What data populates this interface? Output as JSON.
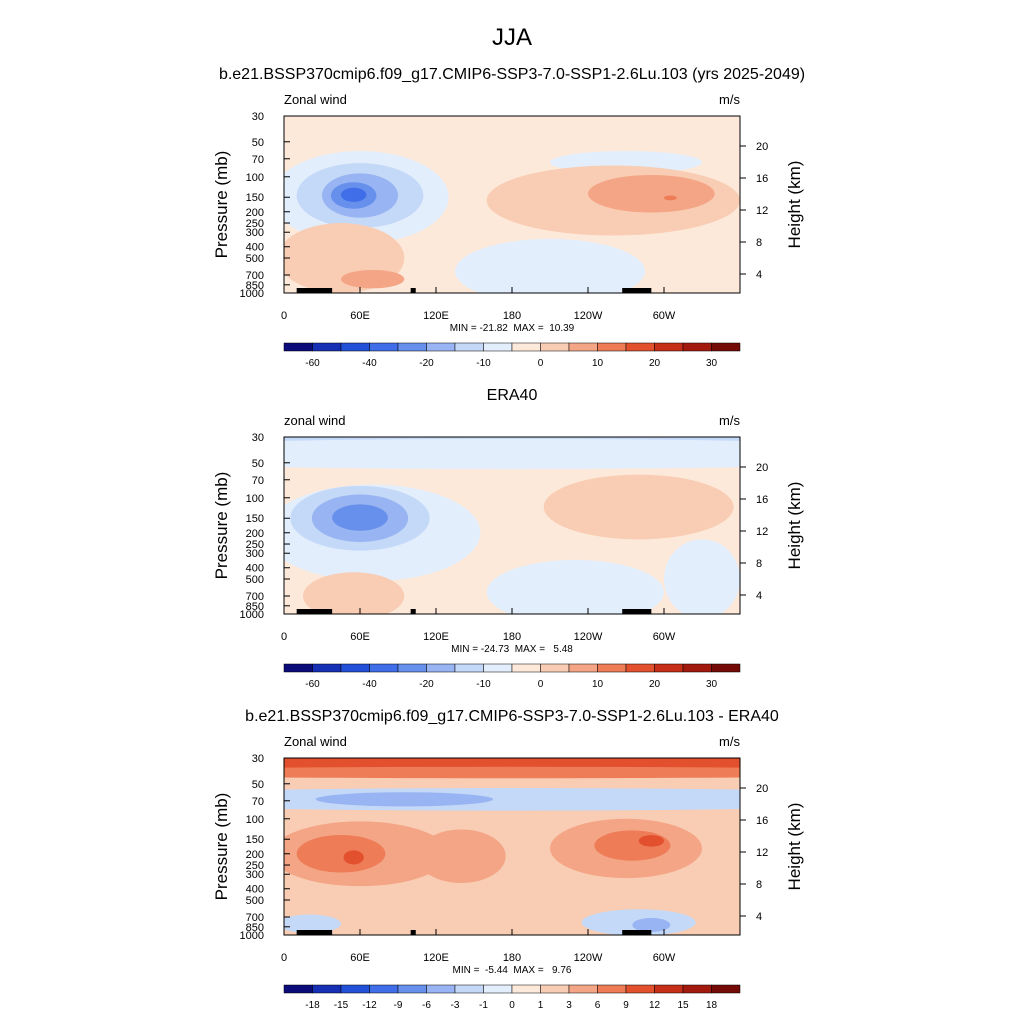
{
  "main_title": "JJA",
  "subtitle": "b.e21.BSSP370cmip6.f09_g17.CMIP6-SSP3-7.0-SSP1-2.6Lu.103 (yrs 2025-2049)",
  "chart_data": [
    {
      "type": "heatmap",
      "title": "",
      "left_label": "Zonal wind",
      "right_label": "m/s",
      "ylabel": "Pressure (mb)",
      "ylabel_right": "Height (km)",
      "x_ticks": [
        "0",
        "60E",
        "120E",
        "180",
        "120W",
        "60W"
      ],
      "x_range": [
        0,
        360
      ],
      "y_ticks": [
        "30",
        "50",
        "70",
        "100",
        "150",
        "200",
        "250",
        "300",
        "400",
        "500",
        "700",
        "850",
        "1000"
      ],
      "y_range_mb": [
        1000,
        30
      ],
      "height_ticks": [
        "20",
        "16",
        "12",
        "8",
        "4"
      ],
      "stats": "MIN = -21.82  MAX =  10.39",
      "min": -21.82,
      "max": 10.39,
      "colorbar_labels": [
        "-60",
        "-40",
        "-20",
        "-10",
        "0",
        "10",
        "20",
        "30"
      ]
    },
    {
      "type": "heatmap",
      "title": "ERA40",
      "left_label": "zonal wind",
      "right_label": "m/s",
      "ylabel": "Pressure (mb)",
      "ylabel_right": "Height (km)",
      "x_ticks": [
        "0",
        "60E",
        "120E",
        "180",
        "120W",
        "60W"
      ],
      "x_range": [
        0,
        360
      ],
      "y_ticks": [
        "30",
        "50",
        "70",
        "100",
        "150",
        "200",
        "250",
        "300",
        "400",
        "500",
        "700",
        "850",
        "1000"
      ],
      "y_range_mb": [
        1000,
        30
      ],
      "height_ticks": [
        "20",
        "16",
        "12",
        "8",
        "4"
      ],
      "stats": "MIN = -24.73  MAX =   5.48",
      "min": -24.73,
      "max": 5.48,
      "colorbar_labels": [
        "-60",
        "-40",
        "-20",
        "-10",
        "0",
        "10",
        "20",
        "30"
      ]
    },
    {
      "type": "heatmap",
      "title": "b.e21.BSSP370cmip6.f09_g17.CMIP6-SSP3-7.0-SSP1-2.6Lu.103 - ERA40",
      "left_label": "Zonal wind",
      "right_label": "m/s",
      "ylabel": "Pressure (mb)",
      "ylabel_right": "Height (km)",
      "x_ticks": [
        "0",
        "60E",
        "120E",
        "180",
        "120W",
        "60W"
      ],
      "x_range": [
        0,
        360
      ],
      "y_ticks": [
        "30",
        "50",
        "70",
        "100",
        "150",
        "200",
        "250",
        "300",
        "400",
        "500",
        "700",
        "850",
        "1000"
      ],
      "y_range_mb": [
        1000,
        30
      ],
      "height_ticks": [
        "20",
        "16",
        "12",
        "8",
        "4"
      ],
      "stats": "MIN =  -5.44  MAX =   9.76",
      "min": -5.44,
      "max": 9.76,
      "colorbar_labels": [
        "-18",
        "-15",
        "-12",
        "-9",
        "-6",
        "-3",
        "-1",
        "0",
        "1",
        "3",
        "6",
        "9",
        "12",
        "15",
        "18"
      ]
    }
  ],
  "colormap": [
    "#0b0b7a",
    "#1530b4",
    "#2350d8",
    "#3f6ee8",
    "#6690ec",
    "#98b4f2",
    "#c4d8f8",
    "#e2eefc",
    "#fde9da",
    "#f9cdb4",
    "#f4a586",
    "#ee7c57",
    "#e3502e",
    "#c72e17",
    "#a21a0e",
    "#730a06"
  ]
}
